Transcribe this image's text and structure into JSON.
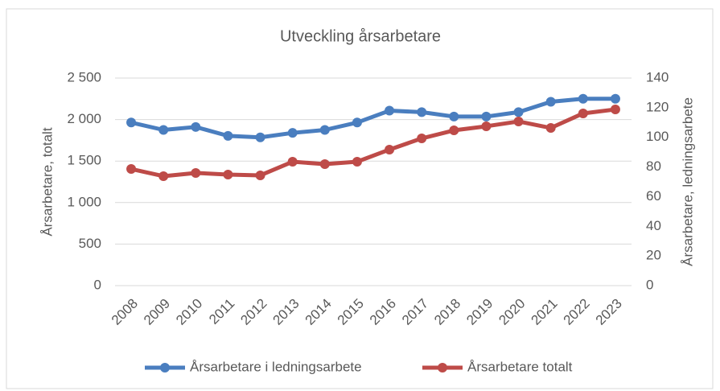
{
  "chart_data": {
    "type": "line",
    "title": "Utveckling årsarbetare",
    "categories": [
      "2008",
      "2009",
      "2010",
      "2011",
      "2012",
      "2013",
      "2014",
      "2015",
      "2016",
      "2017",
      "2018",
      "2019",
      "2020",
      "2021",
      "2022",
      "2023"
    ],
    "series": [
      {
        "name": "Årsarbetare i ledningsarbete",
        "color": "#4a7ebf",
        "axis": "y2",
        "values": [
          110,
          105,
          107,
          101,
          100,
          103,
          105,
          110,
          118,
          117,
          114,
          114,
          117,
          124,
          126,
          126
        ]
      },
      {
        "name": "Årsarbetare totalt",
        "color": "#be4b48",
        "axis": "y",
        "values": [
          1405,
          1318,
          1357,
          1337,
          1328,
          1492,
          1463,
          1492,
          1638,
          1773,
          1870,
          1919,
          1977,
          1899,
          2074,
          2122
        ]
      }
    ],
    "ylabel": "Årsarbetare, totalt",
    "y2label": "Årsarbetare, ledningsarbete",
    "ylim": [
      0,
      2500
    ],
    "yticks": [
      0,
      500,
      {
        "value": 1000,
        "label": "1 000"
      },
      {
        "value": 1500,
        "label": "1 500"
      },
      {
        "value": 2000,
        "label": "2 000"
      },
      {
        "value": 2500,
        "label": "2 500"
      }
    ],
    "y2lim": [
      0,
      140
    ],
    "y2ticks": [
      0,
      20,
      40,
      60,
      80,
      100,
      120,
      140
    ],
    "grid": true,
    "legend": "bottom"
  }
}
